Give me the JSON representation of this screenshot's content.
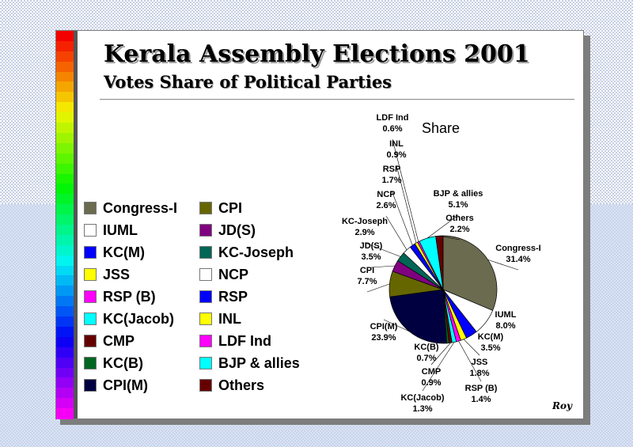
{
  "header": {
    "title": "Kerala Assembly Elections 2001",
    "subtitle": "Votes Share of Political Parties"
  },
  "signature": "Roy",
  "chart_data": {
    "type": "pie",
    "title": "Share",
    "legend_placement": "left",
    "slices": [
      {
        "name": "Congress-I",
        "value": 31.4,
        "label": "31.4%",
        "color": "#6b6b50"
      },
      {
        "name": "IUML",
        "value": 8.0,
        "label": "8.0%",
        "color": "#ffffff"
      },
      {
        "name": "KC(M)",
        "value": 3.5,
        "label": "3.5%",
        "color": "#0000ff"
      },
      {
        "name": "JSS",
        "value": 1.8,
        "label": "1.8%",
        "color": "#ffff00"
      },
      {
        "name": "RSP (B)",
        "value": 1.4,
        "label": "1.4%",
        "color": "#ff00ff"
      },
      {
        "name": "KC(Jacob)",
        "value": 1.3,
        "label": "1.3%",
        "color": "#00ffff"
      },
      {
        "name": "CMP",
        "value": 0.9,
        "label": "0.9%",
        "color": "#660000"
      },
      {
        "name": "KC(B)",
        "value": 0.7,
        "label": "0.7%",
        "color": "#006622"
      },
      {
        "name": "CPI(M)",
        "value": 23.9,
        "label": "23.9%",
        "color": "#000040"
      },
      {
        "name": "CPI",
        "value": 7.7,
        "label": "7.7%",
        "color": "#666600"
      },
      {
        "name": "JD(S)",
        "value": 3.5,
        "label": "3.5%",
        "color": "#800080"
      },
      {
        "name": "KC-Joseph",
        "value": 2.9,
        "label": "2.9%",
        "color": "#006655"
      },
      {
        "name": "NCP",
        "value": 2.6,
        "label": "2.6%",
        "color": "#ffffff"
      },
      {
        "name": "RSP",
        "value": 1.7,
        "label": "1.7%",
        "color": "#0000ff"
      },
      {
        "name": "INL",
        "value": 0.9,
        "label": "0.9%",
        "color": "#ffff00"
      },
      {
        "name": "LDF Ind",
        "value": 0.6,
        "label": "0.6%",
        "color": "#ff00ff"
      },
      {
        "name": "BJP & allies",
        "value": 5.1,
        "label": "5.1%",
        "color": "#00ffff"
      },
      {
        "name": "Others",
        "value": 2.2,
        "label": "2.2%",
        "color": "#660000"
      }
    ]
  }
}
